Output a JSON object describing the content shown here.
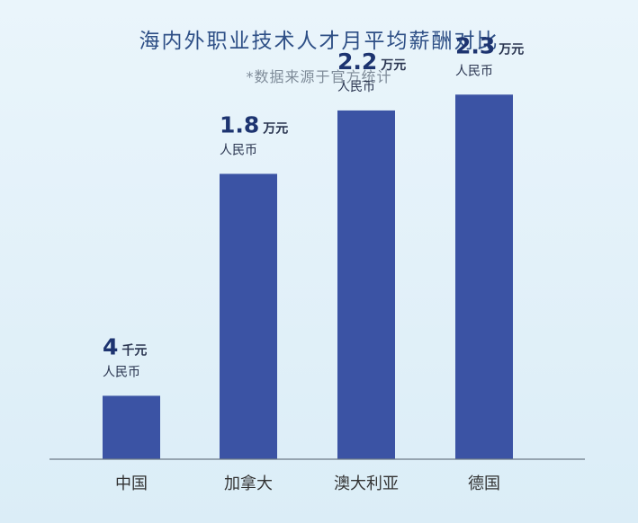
{
  "chart_data": {
    "type": "bar",
    "title": "海内外职业技术人才月平均薪酬对比",
    "subtitle": "*数据来源于官方统计",
    "categories": [
      "中国",
      "加拿大",
      "澳大利亚",
      "德国"
    ],
    "values": [
      4000,
      18000,
      22000,
      23000
    ],
    "unit": "人民币",
    "ylim": [
      0,
      25000
    ],
    "grid": false,
    "bar_color": "#3b53a4",
    "data_labels": [
      {
        "number": "4",
        "unit": "千元",
        "currency": "人民币"
      },
      {
        "number": "1.8",
        "unit": "万元",
        "currency": "人民币"
      },
      {
        "number": "2.2",
        "unit": "万元",
        "currency": "人民币"
      },
      {
        "number": "2.3",
        "unit": "万元",
        "currency": "人民币"
      }
    ]
  },
  "colors": {
    "title": "#2e4f86",
    "subtitle": "#7f8c99",
    "axis": "#6d7a86",
    "label_number": "#1d3470"
  }
}
